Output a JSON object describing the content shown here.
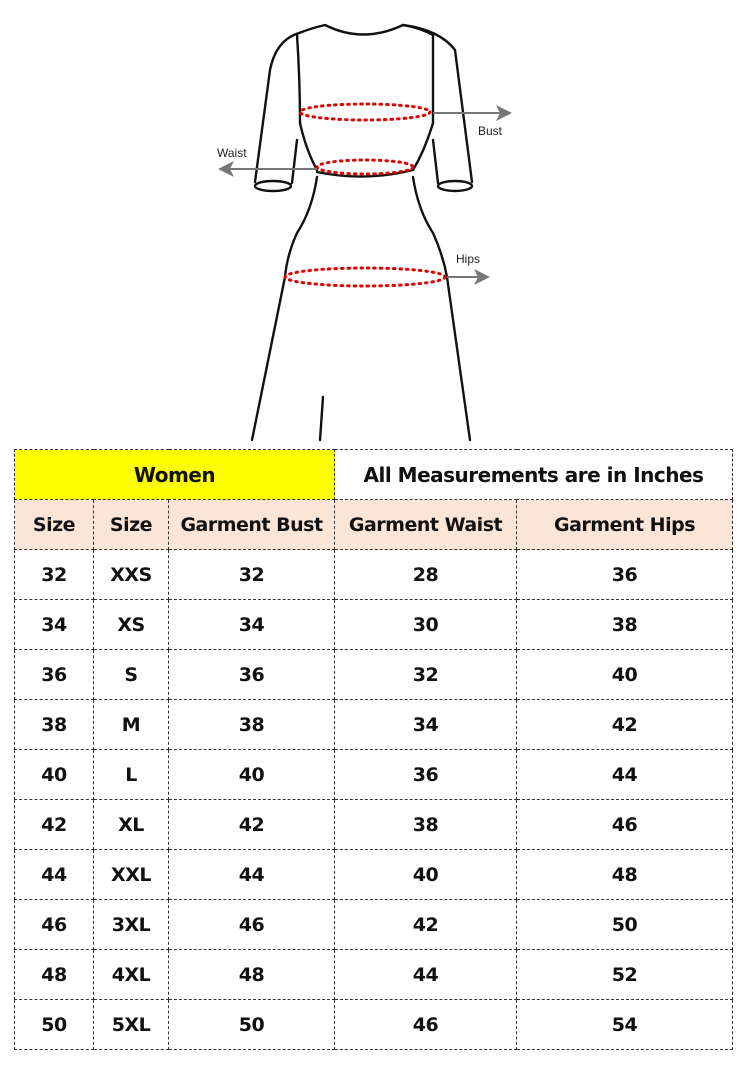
{
  "diagram": {
    "labels": {
      "bust": "Bust",
      "waist": "Waist",
      "hips": "Hips"
    },
    "colors": {
      "outline": "#111111",
      "measure_dots": "#e00000",
      "arrow": "#777777"
    }
  },
  "table": {
    "title_left": "Women",
    "title_right": "All Measurements are in Inches",
    "columns": [
      "Size",
      "Size",
      "Garment Bust",
      "Garment Waist",
      "Garment Hips"
    ],
    "rows": [
      [
        "32",
        "XXS",
        "32",
        "28",
        "36"
      ],
      [
        "34",
        "XS",
        "34",
        "30",
        "38"
      ],
      [
        "36",
        "S",
        "36",
        "32",
        "40"
      ],
      [
        "38",
        "M",
        "38",
        "34",
        "42"
      ],
      [
        "40",
        "L",
        "40",
        "36",
        "44"
      ],
      [
        "42",
        "XL",
        "42",
        "38",
        "46"
      ],
      [
        "44",
        "XXL",
        "44",
        "40",
        "48"
      ],
      [
        "46",
        "3XL",
        "46",
        "42",
        "50"
      ],
      [
        "48",
        "4XL",
        "48",
        "44",
        "52"
      ],
      [
        "50",
        "5XL",
        "50",
        "46",
        "54"
      ]
    ],
    "colors": {
      "title_bg": "#ffff00",
      "header_bg": "#fbe5d6"
    }
  }
}
